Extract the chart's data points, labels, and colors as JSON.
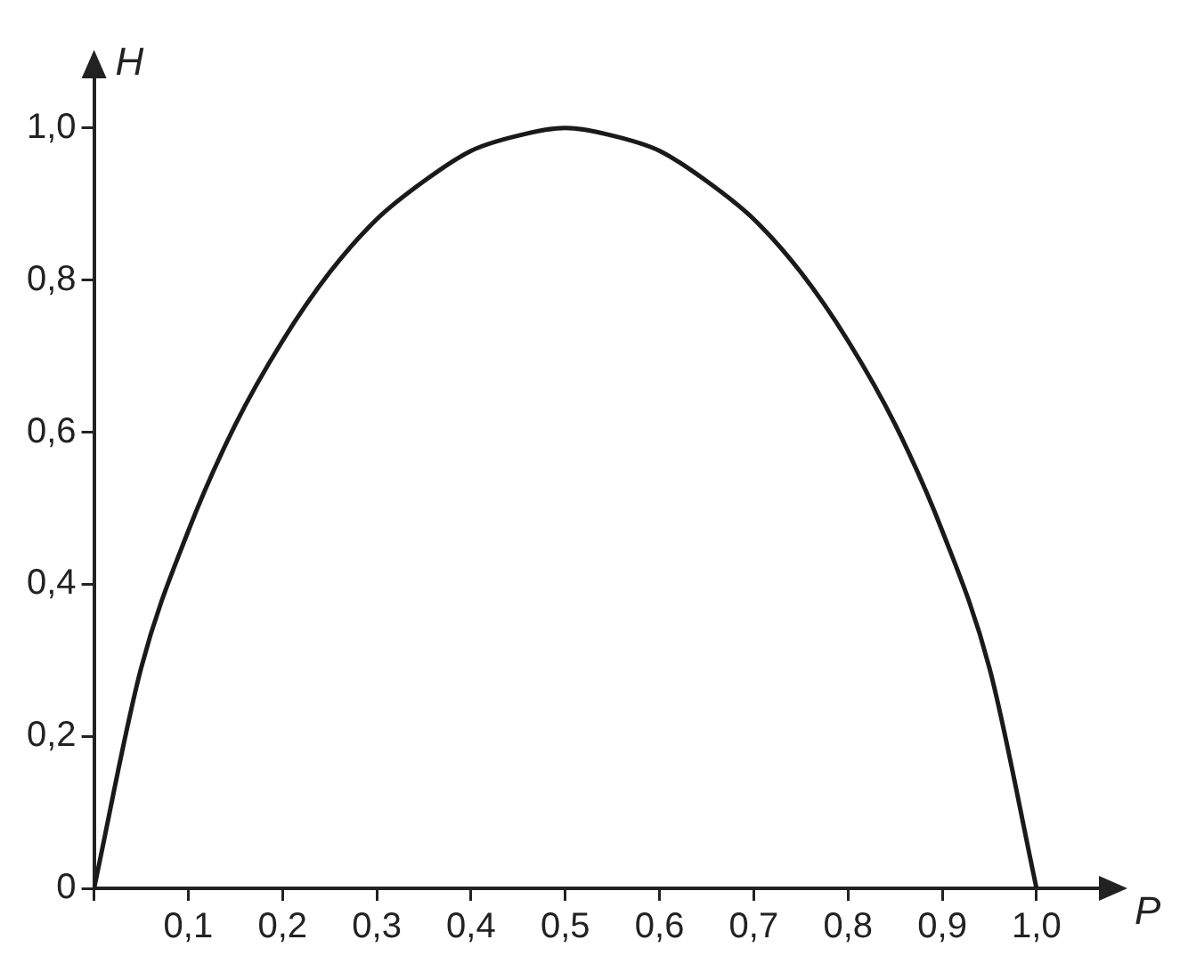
{
  "chart_data": {
    "type": "line",
    "xlabel": "P",
    "ylabel": "H",
    "x": [
      0,
      0.05,
      0.1,
      0.15,
      0.2,
      0.25,
      0.3,
      0.35,
      0.4,
      0.45,
      0.5,
      0.55,
      0.6,
      0.65,
      0.7,
      0.75,
      0.8,
      0.85,
      0.9,
      0.95,
      1.0
    ],
    "series": [
      {
        "color": "#1a1a1a",
        "values": [
          0,
          0.29,
          0.47,
          0.61,
          0.72,
          0.81,
          0.88,
          0.93,
          0.97,
          0.99,
          1.0,
          0.99,
          0.97,
          0.93,
          0.88,
          0.81,
          0.72,
          0.61,
          0.47,
          0.29,
          0
        ]
      }
    ],
    "xlim": [
      0,
      1.07
    ],
    "ylim": [
      0,
      1.07
    ],
    "xticks": [
      {
        "value": 0,
        "label": null
      },
      {
        "value": 0.1,
        "label": "0,1"
      },
      {
        "value": 0.2,
        "label": "0,2"
      },
      {
        "value": 0.3,
        "label": "0,3"
      },
      {
        "value": 0.4,
        "label": "0,4"
      },
      {
        "value": 0.5,
        "label": "0,5"
      },
      {
        "value": 0.6,
        "label": "0,6"
      },
      {
        "value": 0.7,
        "label": "0,7"
      },
      {
        "value": 0.8,
        "label": "0,8"
      },
      {
        "value": 0.9,
        "label": "0,9"
      },
      {
        "value": 1.0,
        "label": "1,0"
      }
    ],
    "yticks": [
      0,
      {
        "value": 0.2,
        "label": "0,2"
      },
      {
        "value": 0.4,
        "label": "0,4"
      },
      {
        "value": 0.6,
        "label": "0,6"
      },
      {
        "value": 0.8,
        "label": "0,8"
      },
      {
        "value": 1.0,
        "label": "1,0"
      }
    ],
    "grid": false,
    "legend": false,
    "marker": "none",
    "line_style": "solid"
  }
}
